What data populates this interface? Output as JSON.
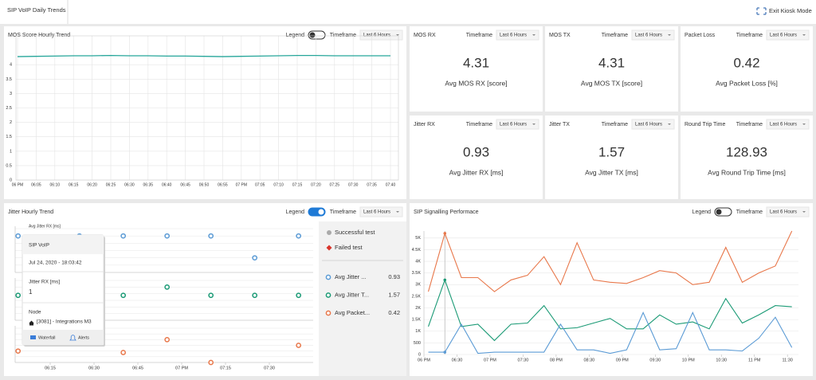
{
  "header": {
    "title": "SIP VoIP Daily Trends",
    "exit": "Exit Kiosk Mode"
  },
  "mos_trend": {
    "title": "MOS Score Hourly Trend",
    "legend_label": "Legend",
    "legend_on": false,
    "timeframe_label": "Timeframe",
    "timeframe": "Last 6 Hours",
    "chart": {
      "type": "line",
      "categories": [
        "06 PM",
        "06:05",
        "06:10",
        "06:15",
        "06:20",
        "06:25",
        "06:30",
        "06:35",
        "06:40",
        "06:45",
        "06:50",
        "06:55",
        "07 PM",
        "07:05",
        "07:10",
        "07:15",
        "07:20",
        "07:25",
        "07:30",
        "07:35",
        "07:40"
      ],
      "values": [
        4.28,
        4.29,
        4.3,
        4.31,
        4.31,
        4.32,
        4.31,
        4.31,
        4.3,
        4.3,
        4.29,
        4.28,
        4.29,
        4.3,
        4.31,
        4.32,
        4.32,
        4.31,
        4.31,
        4.31,
        4.31
      ],
      "color": "#26a69a",
      "ylim": [
        0,
        5
      ],
      "yticks": [
        0,
        0.5,
        1,
        1.5,
        2,
        2.5,
        3,
        3.5,
        4
      ],
      "grid": true
    }
  },
  "stats": [
    {
      "title": "MOS RX",
      "timeframe_label": "Timeframe",
      "timeframe": "Last 6 Hours",
      "value": 4.31,
      "label": "Avg MOS RX [score]"
    },
    {
      "title": "MOS TX",
      "timeframe_label": "Timeframe",
      "timeframe": "Last 6 Hours",
      "value": 4.31,
      "label": "Avg MOS TX [score]"
    },
    {
      "title": "Packet Loss",
      "timeframe_label": "Timeframe",
      "timeframe": "Last 6 Hours",
      "value": 0.42,
      "label": "Avg Packet Loss [%]"
    },
    {
      "title": "Jitter RX",
      "timeframe_label": "Timeframe",
      "timeframe": "Last 6 Hours",
      "value": 0.93,
      "label": "Avg Jitter RX [ms]"
    },
    {
      "title": "Jitter TX",
      "timeframe_label": "Timeframe",
      "timeframe": "Last 6 Hours",
      "value": 1.57,
      "label": "Avg Jitter TX [ms]"
    },
    {
      "title": "Round Trip Time",
      "timeframe_label": "Timeframe",
      "timeframe": "Last 6 Hours",
      "value": 128.93,
      "label": "Avg Round Trip Time [ms]"
    }
  ],
  "jitter_trend": {
    "title": "Jitter Hourly Trend",
    "legend_label": "Legend",
    "legend_on": true,
    "timeframe_label": "Timeframe",
    "timeframe": "Last 6 Hours",
    "chart": {
      "type": "scatter",
      "subplot_label": "Avg Jitter RX [ms]",
      "xlim": [
        3,
        105
      ],
      "xticks": [
        {
          "value": 15,
          "label": "06:15"
        },
        {
          "value": 30,
          "label": "06:30"
        },
        {
          "value": 45,
          "label": "06:45"
        },
        {
          "value": 60,
          "label": "07 PM"
        },
        {
          "value": 75,
          "label": "07:15"
        },
        {
          "value": 90,
          "label": "07:30"
        }
      ],
      "series": [
        {
          "color": "#5b9bd5",
          "x": [
            4,
            25,
            40,
            55,
            70,
            85,
            100
          ],
          "values": [
            1,
            1,
            1,
            1,
            1,
            0.4,
            1
          ],
          "ylim": [
            0,
            1.2
          ],
          "yticks": [
            0,
            0.2,
            0.4,
            0.6,
            0.8,
            1,
            1.2
          ]
        },
        {
          "color": "#1a9a75",
          "x": [
            4,
            40,
            55,
            70,
            85,
            100
          ],
          "values": [
            1.5,
            1.5,
            2,
            1.5,
            1.5,
            1.5
          ],
          "ylim": [
            0,
            2.4
          ],
          "yticks": [
            0,
            0.4,
            0.8,
            1.2,
            1.6,
            2,
            2.4
          ]
        },
        {
          "color": "#e8774a",
          "x": [
            4,
            40,
            55,
            70,
            100
          ],
          "values": [
            0.4,
            0.35,
            0.8,
            0,
            0.6
          ],
          "ylim": [
            0,
            1.2
          ],
          "yticks": [
            0,
            0.2,
            0.4,
            0.6,
            0.8,
            1,
            1.2
          ]
        }
      ]
    },
    "tooltip": {
      "title": "SIP VoIP",
      "date": "Jul 24, 2020 - 18:03:42",
      "metric": "Jitter RX [ms]",
      "metric_value": 1,
      "node_label": "Node",
      "node": "[3081] - Integrations M3",
      "actions": [
        "Waterfall",
        "Alerts"
      ]
    },
    "status_legend": [
      {
        "label": "Successful test",
        "color": "#aaaaaa"
      },
      {
        "label": "Failed test",
        "color": "#d9342b"
      }
    ],
    "averages": [
      {
        "name": "Avg Jitter ...",
        "value": 0.93,
        "color": "#5b9bd5"
      },
      {
        "name": "Avg Jitter T...",
        "value": 1.57,
        "color": "#1a9a75"
      },
      {
        "name": "Avg Packet...",
        "value": 0.42,
        "color": "#e8774a"
      }
    ]
  },
  "sip": {
    "title": "SIP Signalling Performace",
    "legend_label": "Legend",
    "legend_on": false,
    "timeframe_label": "Timeframe",
    "timeframe": "Last 6 Hours",
    "chart": {
      "type": "line",
      "x": [
        4,
        19,
        34,
        49,
        64,
        79,
        94,
        109,
        124,
        139,
        154,
        169,
        184,
        199,
        214,
        229,
        244,
        259,
        274,
        289,
        304,
        319,
        334
      ],
      "xlim": [
        0,
        340
      ],
      "xticks": [
        {
          "value": 0,
          "label": "06 PM"
        },
        {
          "value": 30,
          "label": "06:30"
        },
        {
          "value": 60,
          "label": "07 PM"
        },
        {
          "value": 90,
          "label": "07:30"
        },
        {
          "value": 120,
          "label": "08 PM"
        },
        {
          "value": 150,
          "label": "08:30"
        },
        {
          "value": 180,
          "label": "09 PM"
        },
        {
          "value": 210,
          "label": "09:30"
        },
        {
          "value": 240,
          "label": "10 PM"
        },
        {
          "value": 270,
          "label": "10:30"
        },
        {
          "value": 300,
          "label": "11 PM"
        },
        {
          "value": 330,
          "label": "11:30"
        }
      ],
      "ylim": [
        0,
        5300
      ],
      "yticks": [
        0,
        500,
        {
          "value": 1000,
          "label": "1K"
        },
        {
          "value": 1500,
          "label": "1.5K"
        },
        {
          "value": 2000,
          "label": "2K"
        },
        {
          "value": 2500,
          "label": "2.5K"
        },
        {
          "value": 3000,
          "label": "3K"
        },
        {
          "value": 3500,
          "label": "3.5K"
        },
        {
          "value": 4000,
          "label": "4K"
        },
        {
          "value": 4500,
          "label": "4.5K"
        },
        {
          "value": 5000,
          "label": "5K"
        }
      ],
      "grid": true,
      "series": [
        {
          "color": "#e8774a",
          "values": [
            2700,
            5200,
            3300,
            3300,
            2700,
            3200,
            3400,
            4200,
            3000,
            4800,
            3200,
            3100,
            3050,
            3300,
            3600,
            3500,
            3000,
            3100,
            4600,
            3100,
            3500,
            3800,
            5300
          ]
        },
        {
          "color": "#1a9a75",
          "values": [
            1200,
            3200,
            1200,
            1300,
            600,
            1300,
            1350,
            2100,
            1100,
            1150,
            1350,
            1550,
            1100,
            1100,
            1700,
            1300,
            1400,
            1100,
            2400,
            1350,
            1700,
            2100,
            2050
          ]
        },
        {
          "color": "#5b9bd5",
          "values": [
            100,
            100,
            1300,
            50,
            100,
            100,
            100,
            100,
            1300,
            200,
            200,
            50,
            200,
            1800,
            200,
            250,
            1800,
            200,
            200,
            150,
            700,
            1600,
            300
          ]
        }
      ]
    }
  }
}
